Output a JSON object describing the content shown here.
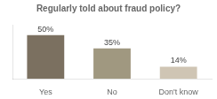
{
  "chart_data": {
    "type": "bar",
    "title": "Regularly told about fraud policy?",
    "categories": [
      "Yes",
      "No",
      "Don't know"
    ],
    "values": [
      50,
      35,
      14
    ],
    "value_labels": [
      "50%",
      "35%",
      "14%"
    ],
    "colors": [
      "#7b7060",
      "#a09880",
      "#cfc5b4"
    ],
    "ylim": [
      0,
      62
    ],
    "grid": false,
    "data_labels": true,
    "tick_labels": "x"
  }
}
